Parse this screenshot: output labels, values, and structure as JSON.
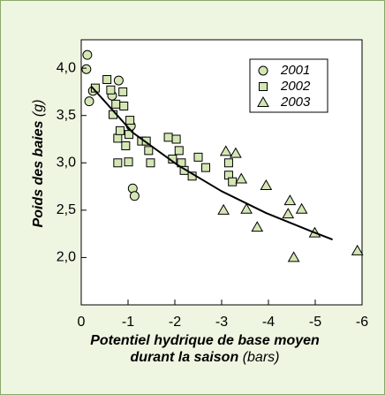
{
  "chart_data": {
    "type": "scatter",
    "ylabel": [
      "Poids des baies",
      "(g)"
    ],
    "xlabel": [
      "Potentiel hydrique de base moyen",
      "durant la saison",
      "(bars)"
    ],
    "xlim": [
      0,
      -6
    ],
    "xticks": [
      0,
      -1,
      -2,
      -3,
      -4,
      -5,
      -6
    ],
    "ylim": [
      1.5,
      4.3
    ],
    "yticks": [
      {
        "value": 2.0,
        "label": "2,0"
      },
      {
        "value": 2.5,
        "label": "2,5"
      },
      {
        "value": 3.0,
        "label": "3,0"
      },
      {
        "value": 3.5,
        "label": "3,5"
      },
      {
        "value": 4.0,
        "label": "4,0"
      }
    ],
    "legend": "upper right",
    "series": [
      {
        "name": "2001",
        "marker": "circle",
        "color": "#d5e6b5",
        "x": [
          -0.13,
          -0.11,
          -0.17,
          -0.8,
          -0.66,
          -1.06,
          -1.1,
          -1.14,
          -0.25
        ],
        "values": [
          4.14,
          3.99,
          3.65,
          3.87,
          3.71,
          3.39,
          2.73,
          2.65,
          3.76
        ]
      },
      {
        "name": "2002",
        "marker": "square",
        "color": "#d5e6b5",
        "x": [
          -0.3,
          -0.55,
          -0.63,
          -0.74,
          -0.89,
          -0.91,
          -0.68,
          -0.78,
          -0.83,
          -1.04,
          -1.02,
          -0.95,
          -0.78,
          -1.01,
          -1.29,
          -1.39,
          -1.44,
          -1.48,
          -1.86,
          -2.03,
          -2.09,
          -1.95,
          -2.14,
          -2.2,
          -2.37,
          -2.5,
          -2.66,
          -3.15,
          -3.15,
          -3.23
        ],
        "values": [
          3.79,
          3.88,
          3.77,
          3.62,
          3.75,
          3.6,
          3.51,
          3.26,
          3.34,
          3.45,
          3.3,
          3.18,
          3.0,
          3.01,
          3.23,
          3.23,
          3.13,
          3.0,
          3.27,
          3.25,
          3.13,
          3.04,
          3.0,
          2.92,
          2.86,
          3.06,
          2.95,
          3.0,
          2.87,
          2.8
        ]
      },
      {
        "name": "2003",
        "marker": "triangle",
        "color": "#d5e6b5",
        "x": [
          -3.09,
          -3.3,
          -3.04,
          -3.53,
          -3.42,
          -3.95,
          -3.76,
          -4.42,
          -4.46,
          -4.71,
          -4.99,
          -4.54,
          -5.9
        ],
        "values": [
          3.12,
          3.1,
          2.5,
          2.51,
          2.83,
          2.76,
          2.32,
          2.46,
          2.6,
          2.51,
          2.26,
          2.0,
          2.07
        ]
      }
    ],
    "trend_line": {
      "color": "#000000",
      "x": [
        -0.21,
        -1.1,
        -2.05,
        -3.0,
        -3.95,
        -4.9,
        -5.37
      ],
      "values": [
        3.81,
        3.32,
        2.98,
        2.7,
        2.47,
        2.28,
        2.19
      ]
    }
  }
}
